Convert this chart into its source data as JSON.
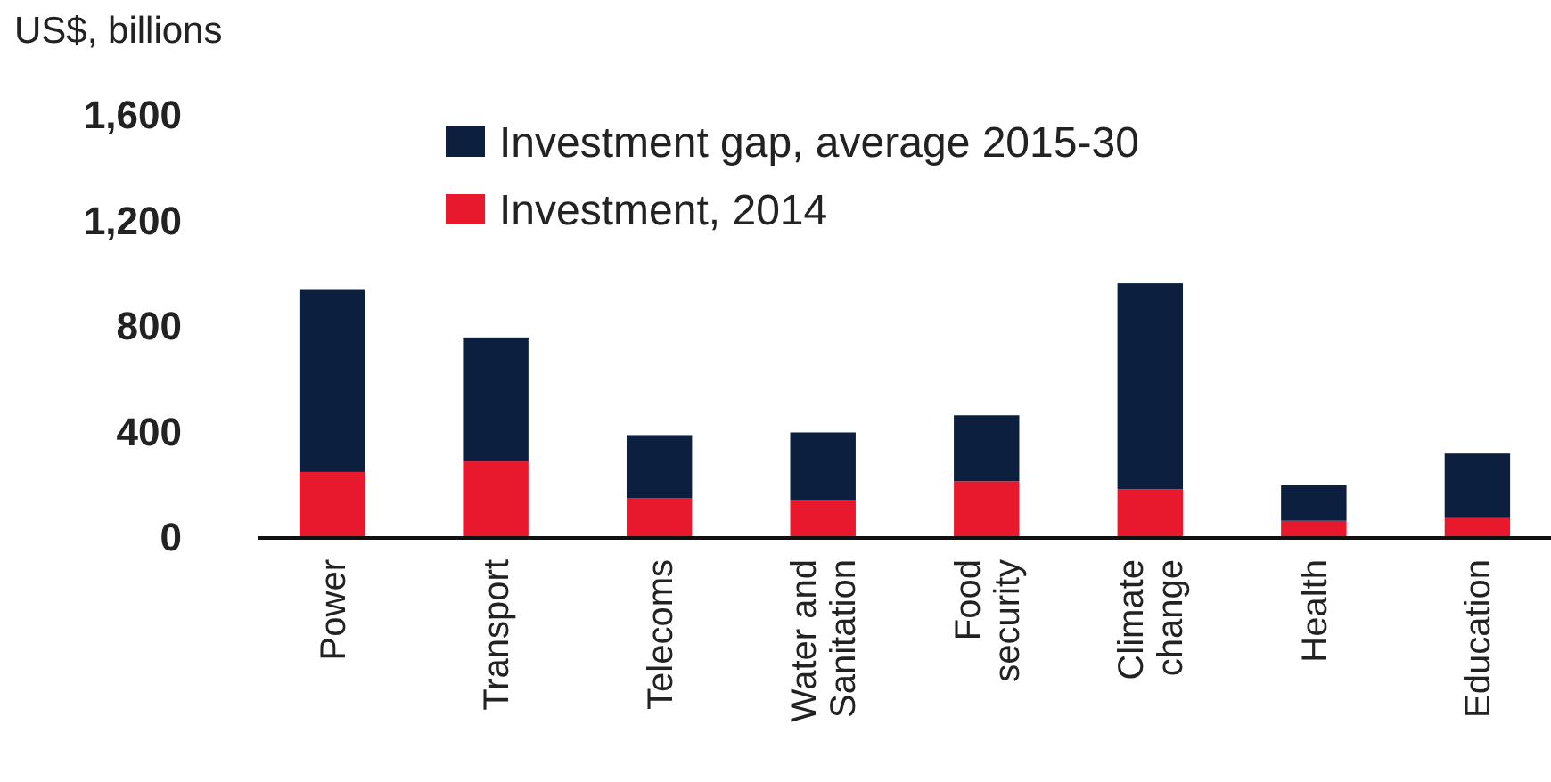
{
  "chart_data": {
    "type": "bar",
    "ylabel": "US$, billions",
    "stacked": true,
    "categories": [
      "Power",
      "Transport",
      "Telecoms",
      "Water and\nSanitation",
      "Food\nsecurity",
      "Climate\nchange",
      "Health",
      "Education"
    ],
    "series": [
      {
        "name": "Investment, 2014",
        "color": "#e8192c",
        "values": [
          250,
          290,
          150,
          145,
          215,
          185,
          65,
          75
        ]
      },
      {
        "name": "Investment gap, average 2015-30",
        "color": "#0c1f3f",
        "values": [
          690,
          470,
          240,
          255,
          250,
          780,
          135,
          245
        ]
      }
    ],
    "ylim": [
      0,
      1600
    ],
    "yticks": [
      0,
      {
        "value": 400,
        "label": "400"
      },
      {
        "value": 800,
        "label": "800"
      },
      {
        "value": 1200,
        "label": "1,200"
      },
      {
        "value": 1600,
        "label": "1,600"
      }
    ],
    "grid": false,
    "legend": "top"
  }
}
